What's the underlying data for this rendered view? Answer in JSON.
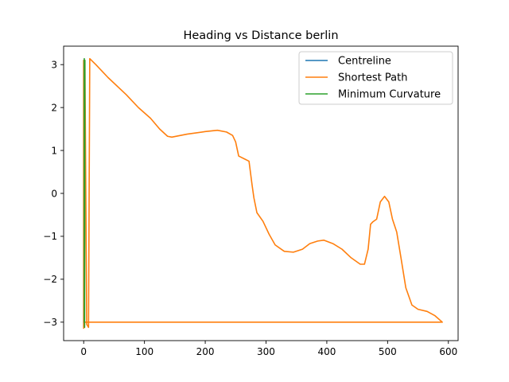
{
  "chart_data": {
    "type": "line",
    "title": "Heading vs Distance berlin",
    "xlabel": "",
    "ylabel": "",
    "xlim": [
      -33,
      616
    ],
    "ylim": [
      -3.43,
      3.43
    ],
    "x_ticks": [
      0,
      100,
      200,
      300,
      400,
      500,
      600
    ],
    "x_tick_labels": [
      "0",
      "100",
      "200",
      "300",
      "400",
      "500",
      "600"
    ],
    "y_ticks": [
      -3,
      -2,
      -1,
      0,
      1,
      2,
      3
    ],
    "y_tick_labels": [
      "−3",
      "−2",
      "−1",
      "0",
      "1",
      "2",
      "3"
    ],
    "grid": false,
    "legend_position": "top-right",
    "series": [
      {
        "name": "Centreline",
        "color": "#1f77b4",
        "points": [
          [
            0,
            0.4
          ],
          [
            0,
            3.1
          ],
          [
            0,
            -3.1
          ],
          [
            0,
            -2.1
          ],
          [
            0,
            0.4
          ]
        ]
      },
      {
        "name": "Shortest Path",
        "color": "#ff7f0e",
        "points": [
          [
            0,
            -3.14
          ],
          [
            0,
            3.1
          ],
          [
            2,
            3.1
          ],
          [
            5,
            -3.05
          ],
          [
            8,
            -3.12
          ],
          [
            10,
            3.14
          ],
          [
            20,
            3.0
          ],
          [
            40,
            2.7
          ],
          [
            70,
            2.3
          ],
          [
            90,
            2.0
          ],
          [
            110,
            1.75
          ],
          [
            125,
            1.5
          ],
          [
            138,
            1.33
          ],
          [
            145,
            1.31
          ],
          [
            170,
            1.38
          ],
          [
            200,
            1.44
          ],
          [
            220,
            1.47
          ],
          [
            235,
            1.43
          ],
          [
            245,
            1.35
          ],
          [
            250,
            1.2
          ],
          [
            255,
            0.87
          ],
          [
            265,
            0.8
          ],
          [
            272,
            0.75
          ],
          [
            277,
            0.2
          ],
          [
            280,
            -0.1
          ],
          [
            285,
            -0.45
          ],
          [
            295,
            -0.65
          ],
          [
            305,
            -0.95
          ],
          [
            315,
            -1.2
          ],
          [
            330,
            -1.35
          ],
          [
            345,
            -1.37
          ],
          [
            360,
            -1.3
          ],
          [
            372,
            -1.17
          ],
          [
            385,
            -1.11
          ],
          [
            395,
            -1.09
          ],
          [
            410,
            -1.17
          ],
          [
            425,
            -1.3
          ],
          [
            440,
            -1.5
          ],
          [
            455,
            -1.65
          ],
          [
            462,
            -1.65
          ],
          [
            468,
            -1.3
          ],
          [
            472,
            -0.72
          ],
          [
            476,
            -0.66
          ],
          [
            482,
            -0.6
          ],
          [
            488,
            -0.2
          ],
          [
            495,
            -0.07
          ],
          [
            502,
            -0.2
          ],
          [
            508,
            -0.6
          ],
          [
            515,
            -0.9
          ],
          [
            522,
            -1.5
          ],
          [
            530,
            -2.2
          ],
          [
            540,
            -2.6
          ],
          [
            550,
            -2.7
          ],
          [
            565,
            -2.75
          ],
          [
            578,
            -2.85
          ],
          [
            590,
            -3.0
          ],
          [
            300,
            -3.0
          ],
          [
            8,
            -3.0
          ],
          [
            0,
            -3.0
          ]
        ]
      },
      {
        "name": "Minimum Curvature",
        "color": "#2ca02c",
        "points": [
          [
            1,
            -3.0
          ],
          [
            1,
            3.14
          ],
          [
            1.5,
            -3.12
          ],
          [
            2,
            3.1
          ],
          [
            1.5,
            -3.0
          ]
        ]
      }
    ]
  }
}
